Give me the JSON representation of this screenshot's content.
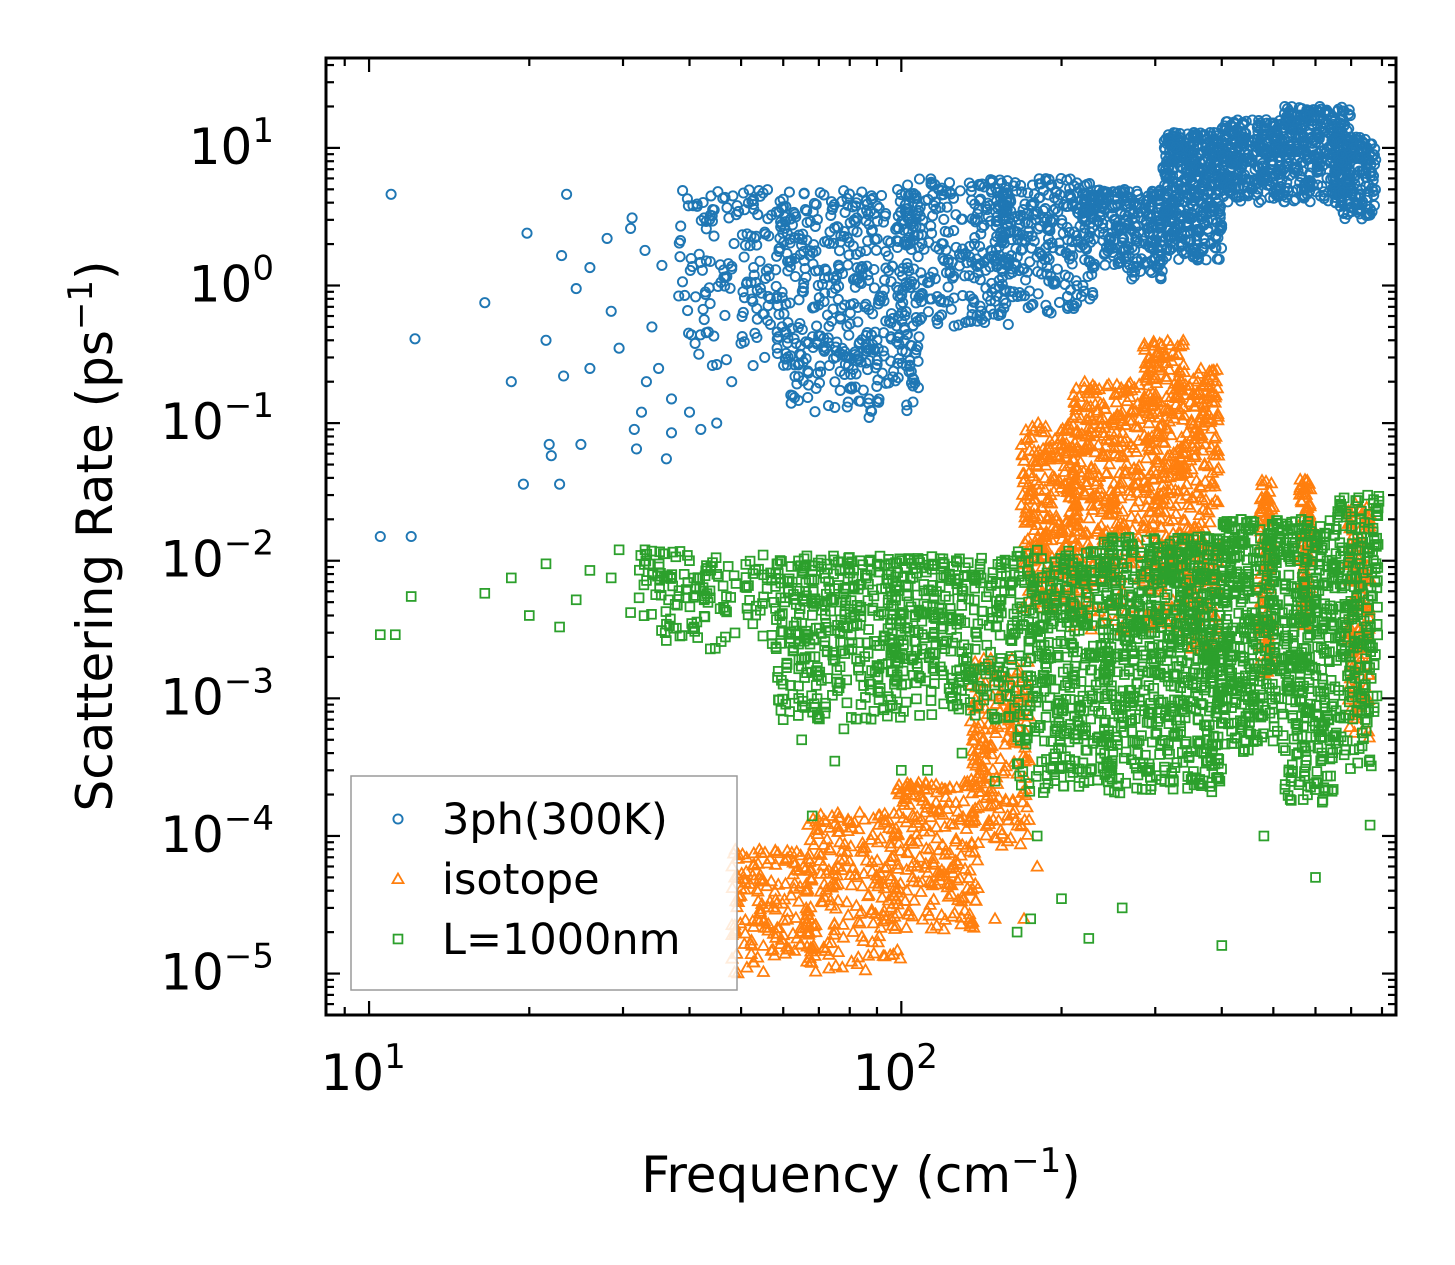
{
  "chart_data": {
    "type": "scatter",
    "xscale": "log",
    "yscale": "log",
    "xlim": [
      8.3,
      850
    ],
    "ylim": [
      5e-06,
      45
    ],
    "xlabel": "Frequency (cm^-1)",
    "ylabel": "Scattering Rate (ps^-1)",
    "xlabel_parts": {
      "main": "Frequency (cm",
      "sup": "−1",
      "end": ")"
    },
    "ylabel_parts": {
      "main": "Scattering Rate (ps",
      "sup": "−1",
      "end": ")"
    },
    "x_ticks": [
      {
        "base": "10",
        "exp": "1",
        "value": 10
      },
      {
        "base": "10",
        "exp": "2",
        "value": 100
      }
    ],
    "y_ticks": [
      {
        "base": "10",
        "exp": "1",
        "value": 10
      },
      {
        "base": "10",
        "exp": "0",
        "value": 1
      },
      {
        "base": "10",
        "exp": "−1",
        "value": 0.1
      },
      {
        "base": "10",
        "exp": "−2",
        "value": 0.01
      },
      {
        "base": "10",
        "exp": "−3",
        "value": 0.001
      },
      {
        "base": "10",
        "exp": "−4",
        "value": 0.0001
      },
      {
        "base": "10",
        "exp": "−5",
        "value": 1e-05
      }
    ],
    "legend_position": "lower-left",
    "series": [
      {
        "name": "3ph(300K)",
        "marker": "circle",
        "color": "#1f77b4",
        "points": [
          [
            10.5,
            0.015
          ],
          [
            11.0,
            4.6
          ],
          [
            12.0,
            0.015
          ],
          [
            12.2,
            0.41
          ],
          [
            16.5,
            0.75
          ],
          [
            18.5,
            0.2
          ],
          [
            19.5,
            0.036
          ],
          [
            19.8,
            2.4
          ],
          [
            21.5,
            0.4
          ],
          [
            21.8,
            0.07
          ],
          [
            22.0,
            0.058
          ],
          [
            22.8,
            0.036
          ],
          [
            23.0,
            1.65
          ],
          [
            23.2,
            0.22
          ],
          [
            23.5,
            4.6
          ],
          [
            24.5,
            0.95
          ],
          [
            25.0,
            0.07
          ],
          [
            26.0,
            1.35
          ],
          [
            26.0,
            0.25
          ],
          [
            28.0,
            2.2
          ],
          [
            28.5,
            0.65
          ],
          [
            29.5,
            0.35
          ],
          [
            31.0,
            2.6
          ],
          [
            31.2,
            3.1
          ],
          [
            31.5,
            0.09
          ],
          [
            31.8,
            0.065
          ],
          [
            32.5,
            0.12
          ],
          [
            33.0,
            1.8
          ],
          [
            33.2,
            0.2
          ],
          [
            34.0,
            0.5
          ],
          [
            35.0,
            0.25
          ],
          [
            35.5,
            1.4
          ],
          [
            36.2,
            0.055
          ],
          [
            37.0,
            0.15
          ],
          [
            37.0,
            0.085
          ],
          [
            38.5,
            2.7
          ],
          [
            40.0,
            0.12
          ],
          [
            42.0,
            0.09
          ],
          [
            45.0,
            0.1
          ],
          [
            48.0,
            0.2
          ],
          [
            55.0,
            4.7
          ],
          [
            62.0,
            0.16
          ],
          [
            75.0,
            0.13
          ],
          [
            87.0,
            0.15
          ],
          [
            87.0,
            0.11
          ],
          [
            95.0,
            0.55
          ],
          [
            102.0,
            0.33
          ]
        ],
        "bands": [
          {
            "x": [
              38,
              62
            ],
            "y": [
              0.25,
              5
            ],
            "n": 150
          },
          {
            "x": [
              58,
              105
            ],
            "y": [
              0.25,
              5
            ],
            "n": 340
          },
          {
            "x": [
              60,
              110
            ],
            "y": [
              0.12,
              0.45
            ],
            "n": 120
          },
          {
            "x": [
              100,
              160
            ],
            "y": [
              0.5,
              6
            ],
            "n": 260
          },
          {
            "x": [
              150,
              230
            ],
            "y": [
              0.6,
              6
            ],
            "n": 280
          },
          {
            "x": [
              220,
              310
            ],
            "y": [
              1.1,
              5
            ],
            "n": 260
          },
          {
            "x": [
              310,
              400
            ],
            "y": [
              1.5,
              13
            ],
            "n": 420
          },
          {
            "x": [
              400,
              520
            ],
            "y": [
              4,
              16
            ],
            "n": 300
          },
          {
            "x": [
              520,
              700
            ],
            "y": [
              4,
              20
            ],
            "n": 320
          },
          {
            "x": [
              650,
              780
            ],
            "y": [
              3,
              12
            ],
            "n": 170
          }
        ]
      },
      {
        "name": "isotope",
        "marker": "triangle",
        "color": "#ff7f0e",
        "points": [
          [
            135,
            4e-05
          ],
          [
            150,
            2.5e-05
          ],
          [
            170,
            2.5e-05
          ],
          [
            180,
            6e-05
          ]
        ],
        "bands": [
          {
            "x": [
              48,
              68
            ],
            "y": [
              1e-05,
              8e-05
            ],
            "n": 160
          },
          {
            "x": [
              66,
              100
            ],
            "y": [
              1e-05,
              0.00015
            ],
            "n": 220
          },
          {
            "x": [
              98,
              140
            ],
            "y": [
              2e-05,
              0.00025
            ],
            "n": 200
          },
          {
            "x": [
              135,
              175
            ],
            "y": [
              8e-05,
              0.002
            ],
            "n": 200
          },
          {
            "x": [
              168,
              215
            ],
            "y": [
              0.004,
              0.1
            ],
            "n": 280
          },
          {
            "x": [
              210,
              280
            ],
            "y": [
              0.003,
              0.2
            ],
            "n": 320
          },
          {
            "x": [
              285,
              340
            ],
            "y": [
              0.003,
              0.4
            ],
            "n": 300
          },
          {
            "x": [
              340,
              395
            ],
            "y": [
              0.002,
              0.25
            ],
            "n": 220
          },
          {
            "x": [
              470,
              500
            ],
            "y": [
              0.0015,
              0.04
            ],
            "n": 90
          },
          {
            "x": [
              560,
              590
            ],
            "y": [
              0.003,
              0.04
            ],
            "n": 90
          },
          {
            "x": [
              690,
              760
            ],
            "y": [
              0.0005,
              0.03
            ],
            "n": 140
          }
        ]
      },
      {
        "name": "L=1000nm",
        "marker": "square",
        "color": "#2ca02c",
        "points": [
          [
            10.5,
            0.0029
          ],
          [
            11.2,
            0.0029
          ],
          [
            12.0,
            0.0055
          ],
          [
            16.5,
            0.0058
          ],
          [
            18.5,
            0.0075
          ],
          [
            20.0,
            0.004
          ],
          [
            21.5,
            0.0095
          ],
          [
            22.8,
            0.0033
          ],
          [
            24.5,
            0.0052
          ],
          [
            26.0,
            0.0085
          ],
          [
            28.5,
            0.0075
          ],
          [
            29.5,
            0.012
          ],
          [
            31.0,
            0.0042
          ],
          [
            33.0,
            0.012
          ],
          [
            36.0,
            0.003
          ],
          [
            40.0,
            0.01
          ],
          [
            55.0,
            0.011
          ],
          [
            60.0,
            0.0007
          ],
          [
            65.0,
            0.0005
          ],
          [
            68.0,
            0.00014
          ],
          [
            75.0,
            0.00035
          ],
          [
            78.0,
            0.0006
          ],
          [
            100.0,
            0.0003
          ],
          [
            112.0,
            0.0003
          ],
          [
            130.0,
            0.0004
          ],
          [
            150.0,
            0.00025
          ],
          [
            165.0,
            2e-05
          ],
          [
            175.0,
            2.5e-05
          ],
          [
            180.0,
            0.0001
          ],
          [
            200.0,
            3.5e-05
          ],
          [
            225.0,
            1.8e-05
          ],
          [
            260.0,
            3e-05
          ],
          [
            400.0,
            1.6e-05
          ],
          [
            480.0,
            0.0001
          ],
          [
            600.0,
            5e-05
          ],
          [
            760.0,
            0.00012
          ]
        ],
        "bands": [
          {
            "x": [
              32,
              60
            ],
            "y": [
              0.002,
              0.012
            ],
            "n": 140
          },
          {
            "x": [
              58,
              100
            ],
            "y": [
              0.0007,
              0.011
            ],
            "n": 340
          },
          {
            "x": [
              95,
              165
            ],
            "y": [
              0.0007,
              0.011
            ],
            "n": 340
          },
          {
            "x": [
              165,
              250
            ],
            "y": [
              0.0002,
              0.012
            ],
            "n": 420
          },
          {
            "x": [
              240,
              320
            ],
            "y": [
              0.0002,
              0.015
            ],
            "n": 360
          },
          {
            "x": [
              320,
              400
            ],
            "y": [
              0.0002,
              0.015
            ],
            "n": 360
          },
          {
            "x": [
              400,
              520
            ],
            "y": [
              0.0004,
              0.02
            ],
            "n": 380
          },
          {
            "x": [
              520,
              650
            ],
            "y": [
              0.00015,
              0.02
            ],
            "n": 340
          },
          {
            "x": [
              650,
              790
            ],
            "y": [
              0.0003,
              0.03
            ],
            "n": 240
          }
        ]
      }
    ]
  }
}
